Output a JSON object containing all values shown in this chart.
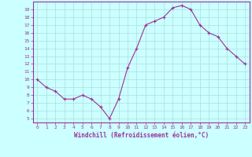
{
  "hours": [
    0,
    1,
    2,
    3,
    4,
    5,
    6,
    7,
    8,
    9,
    10,
    11,
    12,
    13,
    14,
    15,
    16,
    17,
    18,
    19,
    20,
    21,
    22,
    23
  ],
  "values": [
    10,
    9,
    8.5,
    7.5,
    7.5,
    8,
    7.5,
    6.5,
    5,
    7.5,
    11.5,
    14,
    17,
    17.5,
    18,
    19.2,
    19.5,
    19,
    17,
    16,
    15.5,
    14,
    13,
    12
  ],
  "line_color": "#993399",
  "marker": "+",
  "bg_color": "#ccffff",
  "grid_color": "#aadddd",
  "xlabel": "Windchill (Refroidissement éolien,°C)",
  "ylabel_ticks": [
    5,
    6,
    7,
    8,
    9,
    10,
    11,
    12,
    13,
    14,
    15,
    16,
    17,
    18,
    19
  ],
  "ylim": [
    4.5,
    20.0
  ],
  "xlim": [
    -0.5,
    23.5
  ],
  "spine_color": "#993399",
  "tick_color": "#993399",
  "label_color": "#993399"
}
